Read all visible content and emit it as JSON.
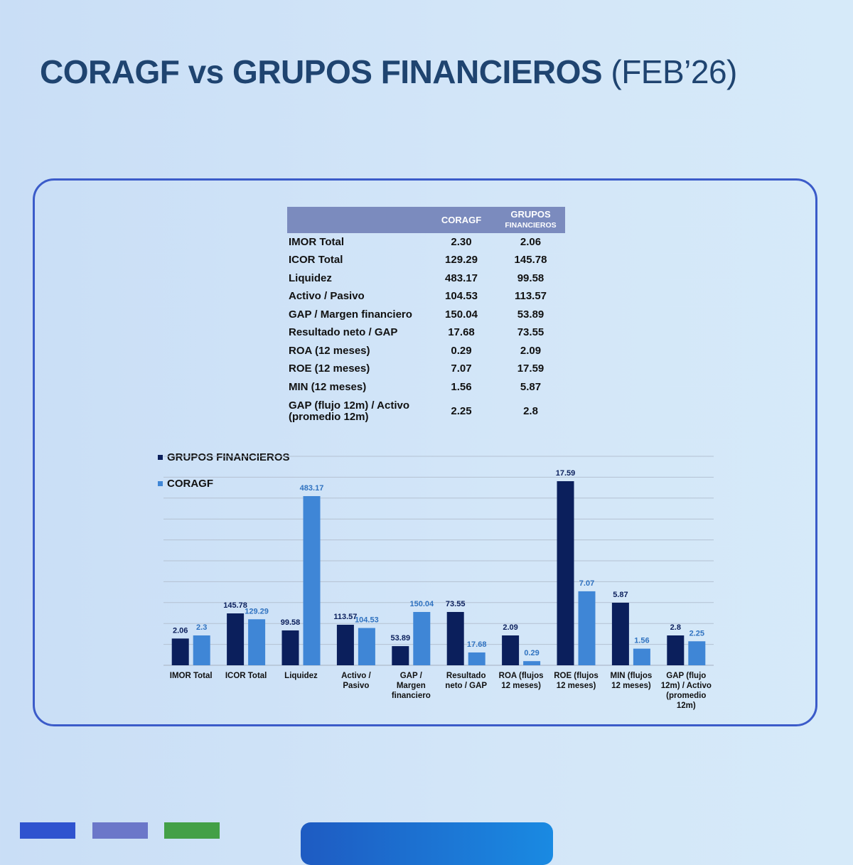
{
  "title": {
    "bold": "CORAGF vs GRUPOS FINANCIEROS",
    "light": "(FEB’26)"
  },
  "table": {
    "headers": {
      "metric": "",
      "coragf": "CORAGF",
      "grupos_line1": "GRUPOS",
      "grupos_line2": "FINANCIEROS"
    },
    "rows": [
      {
        "metric": "IMOR  Total",
        "coragf": "2.30",
        "grupos": "2.06"
      },
      {
        "metric": "ICOR Total",
        "coragf": "129.29",
        "grupos": "145.78"
      },
      {
        "metric": "Liquidez",
        "coragf": "483.17",
        "grupos": "99.58"
      },
      {
        "metric": "Activo / Pasivo",
        "coragf": "104.53",
        "grupos": "113.57"
      },
      {
        "metric": "GAP / Margen financiero",
        "coragf": "150.04",
        "grupos": "53.89"
      },
      {
        "metric": "Resultado neto / GAP",
        "coragf": "17.68",
        "grupos": "73.55"
      },
      {
        "metric": "ROA (12 meses)",
        "coragf": "0.29",
        "grupos": "2.09"
      },
      {
        "metric": "ROE (12 meses)",
        "coragf": "7.07",
        "grupos": "17.59"
      },
      {
        "metric": "MIN (12 meses)",
        "coragf": "1.56",
        "grupos": "5.87"
      },
      {
        "metric": "GAP (flujo 12m) / Activo\n(promedio 12m)",
        "coragf": "2.25",
        "grupos": "2.8"
      }
    ]
  },
  "chart_data": {
    "type": "bar",
    "categories": [
      "IMOR  Total",
      "ICOR Total",
      "Liquidez",
      "Activo /\nPasivo",
      "GAP /\nMargen\nfinanciero",
      "Resultado\nneto / GAP",
      "ROA (flujos\n12 meses)",
      "ROE (flujos\n12 meses)",
      "MIN (flujos\n12 meses)",
      "GAP (flujo\n12m) / Activo\n(promedio\n12m)"
    ],
    "series": [
      {
        "name": "GRUPOS FINANCIEROS",
        "color": "#0b1f5c",
        "label_color": "#0b1f5c",
        "values": [
          2.06,
          145.78,
          99.58,
          113.57,
          53.89,
          73.55,
          2.09,
          17.59,
          5.87,
          2.8
        ],
        "labels": [
          "2.06",
          "145.78",
          "99.58",
          "113.57",
          "53.89",
          "73.55",
          "2.09",
          "17.59",
          "5.87",
          "2.8"
        ]
      },
      {
        "name": "CORAGF",
        "color": "#3f86d6",
        "label_color": "#2f72c0",
        "values": [
          2.3,
          129.29,
          483.17,
          104.53,
          150.04,
          17.68,
          0.29,
          7.07,
          1.56,
          2.25
        ],
        "labels": [
          "2.3",
          "129.29",
          "483.17",
          "104.53",
          "150.04",
          "17.68",
          "0.29",
          "7.07",
          "1.56",
          "2.25"
        ]
      }
    ],
    "legend": "top-left",
    "grid": true,
    "value_scale_note": "each category scaled independently"
  },
  "footer": {
    "bar_colors": [
      "#2f53cf",
      "#6b77c9",
      "#43a047"
    ]
  }
}
